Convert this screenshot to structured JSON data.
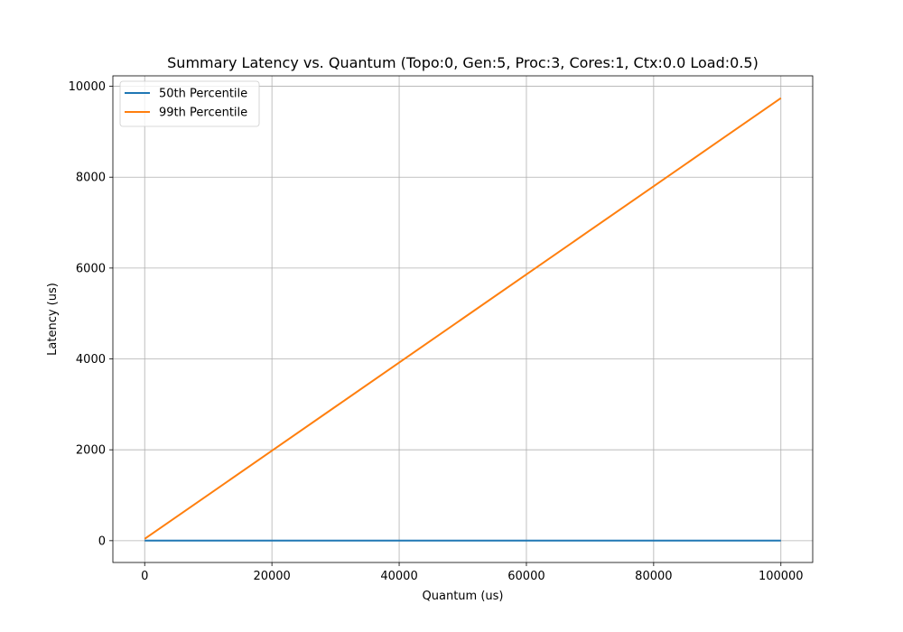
{
  "chart_data": {
    "type": "line",
    "title": "Summary Latency vs. Quantum (Topo:0, Gen:5, Proc:3, Cores:1, Ctx:0.0 Load:0.5)",
    "xlabel": "Quantum (us)",
    "ylabel": "Latency (us)",
    "xlim": [
      -5000,
      105000
    ],
    "ylim": [
      -480,
      10230
    ],
    "xticks": [
      0,
      20000,
      40000,
      60000,
      80000,
      100000
    ],
    "xtick_labels": [
      "0",
      "20000",
      "40000",
      "60000",
      "80000",
      "100000"
    ],
    "yticks": [
      0,
      2000,
      4000,
      6000,
      8000,
      10000
    ],
    "ytick_labels": [
      "0",
      "2000",
      "4000",
      "6000",
      "8000",
      "10000"
    ],
    "grid": true,
    "legend_position": "top-left",
    "series": [
      {
        "name": "50th Percentile",
        "color": "#1f77b4",
        "x": [
          0,
          10000,
          20000,
          30000,
          40000,
          50000,
          60000,
          70000,
          80000,
          90000,
          100000
        ],
        "y": [
          1,
          1,
          1,
          1,
          1,
          1,
          1,
          1,
          1,
          1,
          1
        ]
      },
      {
        "name": "99th Percentile",
        "color": "#ff7f0e",
        "x": [
          0,
          10000,
          20000,
          30000,
          40000,
          50000,
          60000,
          70000,
          80000,
          90000,
          100000
        ],
        "y": [
          40,
          1010,
          1980,
          2950,
          3920,
          4890,
          5860,
          6830,
          7800,
          8770,
          9740
        ]
      }
    ]
  }
}
